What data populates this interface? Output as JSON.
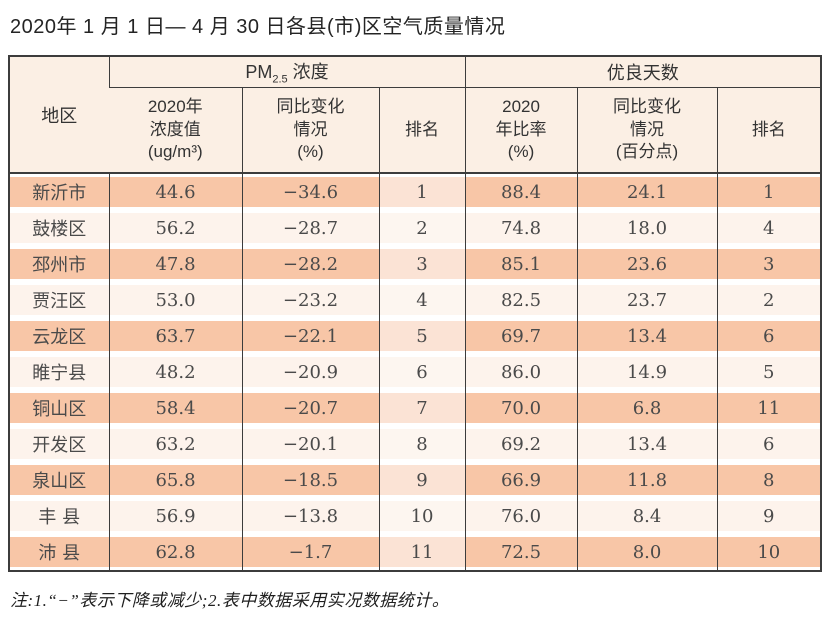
{
  "title": "2020年 1 月 1 日— 4 月 30 日各县(市)区空气质量情况",
  "note": "注:1.“−”表示下降或减少;2.表中数据采用实况数据统计。",
  "colors": {
    "border": "#3c3c3c",
    "header_bg": "#fbefe4",
    "odd_row_bg": "#f8c6a7",
    "even_row_bg": "#fdf3ec",
    "text": "#4a4a4a"
  },
  "table": {
    "region_header": "地区",
    "pm_group": {
      "base": "PM",
      "sub": "2.5",
      "suffix": " 浓度"
    },
    "days_group": "优良天数",
    "columns": {
      "pm_value": "2020年\n浓度值\n(ug/m³)",
      "pm_change": "同比变化\n情况\n(%)",
      "pm_rank": "排名",
      "days_rate": "2020\n年比率\n(%)",
      "days_change": "同比变化\n情况\n(百分点)",
      "days_rank": "排名"
    },
    "rows": [
      {
        "region": "新沂市",
        "pm_value": "44.6",
        "pm_change": "−34.6",
        "pm_rank": "1",
        "days_rate": "88.4",
        "days_change": "24.1",
        "days_rank": "1"
      },
      {
        "region": "鼓楼区",
        "pm_value": "56.2",
        "pm_change": "−28.7",
        "pm_rank": "2",
        "days_rate": "74.8",
        "days_change": "18.0",
        "days_rank": "4"
      },
      {
        "region": "邳州市",
        "pm_value": "47.8",
        "pm_change": "−28.2",
        "pm_rank": "3",
        "days_rate": "85.1",
        "days_change": "23.6",
        "days_rank": "3"
      },
      {
        "region": "贾汪区",
        "pm_value": "53.0",
        "pm_change": "−23.2",
        "pm_rank": "4",
        "days_rate": "82.5",
        "days_change": "23.7",
        "days_rank": "2"
      },
      {
        "region": "云龙区",
        "pm_value": "63.7",
        "pm_change": "−22.1",
        "pm_rank": "5",
        "days_rate": "69.7",
        "days_change": "13.4",
        "days_rank": "6"
      },
      {
        "region": "睢宁县",
        "pm_value": "48.2",
        "pm_change": "−20.9",
        "pm_rank": "6",
        "days_rate": "86.0",
        "days_change": "14.9",
        "days_rank": "5"
      },
      {
        "region": "铜山区",
        "pm_value": "58.4",
        "pm_change": "−20.7",
        "pm_rank": "7",
        "days_rate": "70.0",
        "days_change": "6.8",
        "days_rank": "11"
      },
      {
        "region": "开发区",
        "pm_value": "63.2",
        "pm_change": "−20.1",
        "pm_rank": "8",
        "days_rate": "69.2",
        "days_change": "13.4",
        "days_rank": "6"
      },
      {
        "region": "泉山区",
        "pm_value": "65.8",
        "pm_change": "−18.5",
        "pm_rank": "9",
        "days_rate": "66.9",
        "days_change": "11.8",
        "days_rank": "8"
      },
      {
        "region": "丰 县",
        "pm_value": "56.9",
        "pm_change": "−13.8",
        "pm_rank": "10",
        "days_rate": "76.0",
        "days_change": "8.4",
        "days_rank": "9"
      },
      {
        "region": "沛 县",
        "pm_value": "62.8",
        "pm_change": "−1.7",
        "pm_rank": "11",
        "days_rate": "72.5",
        "days_change": "8.0",
        "days_rank": "10"
      }
    ]
  }
}
